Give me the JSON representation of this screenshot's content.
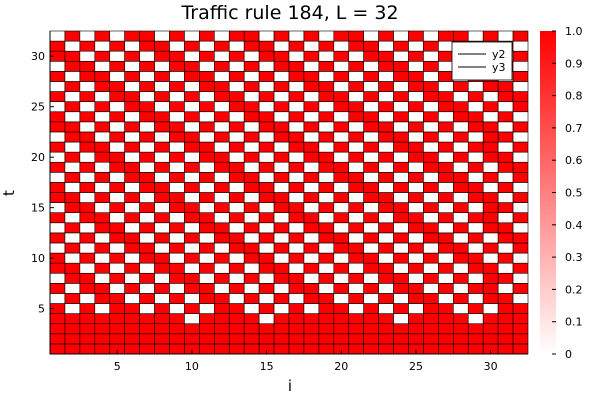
{
  "chart_data": {
    "type": "heatmap",
    "title": "Traffic rule 184, L = 32",
    "xlabel": "i",
    "ylabel": "t",
    "xlim": [
      0.5,
      32.5
    ],
    "ylim": [
      0.5,
      32.5
    ],
    "xticks": [
      5,
      10,
      15,
      20,
      25,
      30
    ],
    "yticks": [
      5,
      10,
      15,
      20,
      25,
      30
    ],
    "grid": true,
    "colorbar": {
      "range": [
        0,
        1
      ],
      "ticks": [
        "0",
        "0.1",
        "0.2",
        "0.3",
        "0.4",
        "0.5",
        "0.6",
        "0.7",
        "0.8",
        "0.9",
        "1.0"
      ],
      "low_color": "#ffffff",
      "high_color": "#ff0000"
    },
    "cell_colors": {
      "occupied": "#ff0000",
      "empty": "#ffffff",
      "edge": "#000000"
    },
    "legend": {
      "position": "top-right",
      "entries": [
        {
          "label": "y2",
          "color": "#000000"
        },
        {
          "label": "y3",
          "color": "#000000"
        }
      ]
    },
    "rows_bottom_to_top": [
      "11111111111111111111111111111111",
      "11111111111111111111111111111111",
      "11111111111111111111111111111111",
      "11111111101111011111111011110111",
      "10101101010110101011010101101011",
      "01011010101101010110101011010110",
      "10110101011010101101010110101101",
      "01101010110101011010101101010110",
      "11010101101010110101011010101101",
      "10101011010101101010110101011010",
      "01010110101011010101101010110101",
      "10101101010110101011010101101011",
      "01011010101101010110101011010110",
      "10110101011010101101010110101101",
      "01101010110101011010101101010110",
      "11010101101010110101011010101101",
      "10101011010101101010110101011010",
      "01010110101011010101101010110101",
      "10101101010110101011010101101011",
      "01011010101101010110101011010110",
      "10110101011010101101010110101101",
      "01101010110101011010101101010110",
      "11010101101010110101011010101101",
      "10101011010101101010110101011010",
      "01010110101011010101101010110101",
      "10101101010110101011010101101011",
      "01011010101101010110101011010110",
      "10110101011010101101010110101101",
      "01101010110101011010101101010110",
      "11010101101010110101011010101101",
      "10101011010101101010110101011010",
      "01010110101011010101101010110101"
    ]
  }
}
